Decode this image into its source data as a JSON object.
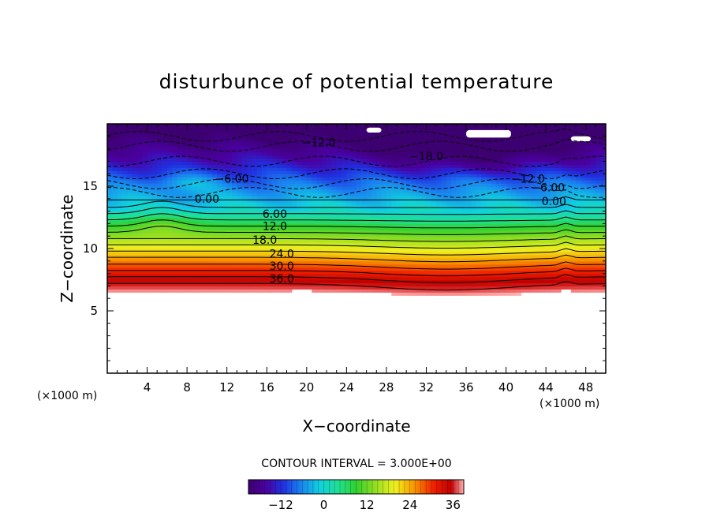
{
  "chart_data": {
    "type": "heatmap",
    "title": "disturbunce of potential temperature",
    "xlabel": "X−coordinate",
    "ylabel": "Z−coordinate",
    "x_unit": "(×1000 m)",
    "y_unit": "(×1000 m)",
    "xlim": [
      0,
      50
    ],
    "ylim": [
      0,
      20
    ],
    "x_ticks": [
      4,
      8,
      12,
      16,
      20,
      24,
      28,
      32,
      36,
      40,
      44,
      48
    ],
    "y_ticks": [
      5,
      10,
      15
    ],
    "contour_interval_text": "CONTOUR INTERVAL = 3.000E+00",
    "colorbar": {
      "range": [
        -21,
        39
      ],
      "ticks": [
        "−12",
        "0",
        "12",
        "24",
        "36"
      ],
      "tick_values": [
        -12,
        0,
        12,
        24,
        36
      ]
    },
    "contour_labels": [
      {
        "text": "−12.0",
        "x": 21.2,
        "y": 18.5
      },
      {
        "text": "−18.0",
        "x": 32.0,
        "y": 17.4
      },
      {
        "text": "−6.00",
        "x": 12.5,
        "y": 15.6
      },
      {
        "text": "−12.0",
        "x": 42.2,
        "y": 15.6
      },
      {
        "text": "−6.00",
        "x": 44.2,
        "y": 14.9
      },
      {
        "text": "0.00",
        "x": 10.0,
        "y": 14.0
      },
      {
        "text": "0.00",
        "x": 44.8,
        "y": 13.8
      },
      {
        "text": "6.00",
        "x": 16.8,
        "y": 12.8
      },
      {
        "text": "12.0",
        "x": 16.8,
        "y": 11.8
      },
      {
        "text": "18.0",
        "x": 15.8,
        "y": 10.7
      },
      {
        "text": "24.0",
        "x": 17.5,
        "y": 9.6
      },
      {
        "text": "30.0",
        "x": 17.5,
        "y": 8.6
      },
      {
        "text": "36.0",
        "x": 17.5,
        "y": 7.6
      }
    ],
    "grid": false,
    "legend": "bottom-center colorbar"
  }
}
